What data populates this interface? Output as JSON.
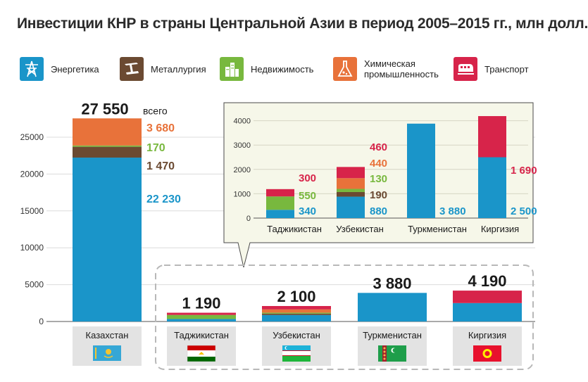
{
  "title": "Инвестиции КНР в страны Центральной Азии в период 2005–2015 гг., млн долл.",
  "legend": [
    {
      "key": "energy",
      "label": "Энергетика",
      "icon": "power-tower-icon",
      "color": "#1a95c9"
    },
    {
      "key": "metal",
      "label": "Металлургия",
      "icon": "steel-beam-icon",
      "color": "#6b4a32"
    },
    {
      "key": "realty",
      "label": "Недвижимость",
      "icon": "buildings-icon",
      "color": "#78b83e"
    },
    {
      "key": "chem",
      "label": "Химическая промышленность",
      "icon": "flask-icon",
      "color": "#e8723a"
    },
    {
      "key": "transport",
      "label": "Транспорт",
      "icon": "train-icon",
      "color": "#d7244a"
    }
  ],
  "chart_data": [
    {
      "type": "bar",
      "stacked": true,
      "categories": [
        "Казахстан",
        "Таджикистан",
        "Узбекистан",
        "Туркменистан",
        "Киргизия"
      ],
      "series": [
        {
          "name": "Энергетика",
          "color": "#1a95c9",
          "values": [
            22230,
            340,
            880,
            3880,
            2500
          ]
        },
        {
          "name": "Металлургия",
          "color": "#6b4a32",
          "values": [
            1470,
            0,
            190,
            0,
            0
          ]
        },
        {
          "name": "Недвижимость",
          "color": "#78b83e",
          "values": [
            170,
            550,
            130,
            0,
            0
          ]
        },
        {
          "name": "Химическая промышленность",
          "color": "#e8723a",
          "values": [
            3680,
            0,
            440,
            0,
            0
          ]
        },
        {
          "name": "Транспорт",
          "color": "#d7244a",
          "values": [
            0,
            300,
            460,
            0,
            1690
          ]
        }
      ],
      "totals": [
        "27 550",
        "1 190",
        "2 100",
        "3 880",
        "4 190"
      ],
      "total_suffix": "всего",
      "segment_labels": {
        "Казахстан": [
          "3 680",
          "170",
          "1 470",
          "22 230"
        ]
      },
      "yticks": [
        0,
        5000,
        10000,
        15000,
        20000,
        25000
      ],
      "ylim": [
        0,
        27550
      ]
    },
    {
      "type": "bar",
      "stacked": true,
      "inset": true,
      "categories": [
        "Таджикистан",
        "Узбекистан",
        "Туркменистан",
        "Киргизия"
      ],
      "labels": {
        "Таджикистан": [
          "300",
          "550",
          "340"
        ],
        "Узбекистан": [
          "460",
          "440",
          "130",
          "190",
          "880"
        ],
        "Туркменистан": [
          "3 880"
        ],
        "Киргизия": [
          "1 690",
          "2 500"
        ]
      },
      "yticks": [
        0,
        1000,
        2000,
        3000,
        4000
      ],
      "ylim": [
        0,
        4200
      ]
    }
  ]
}
